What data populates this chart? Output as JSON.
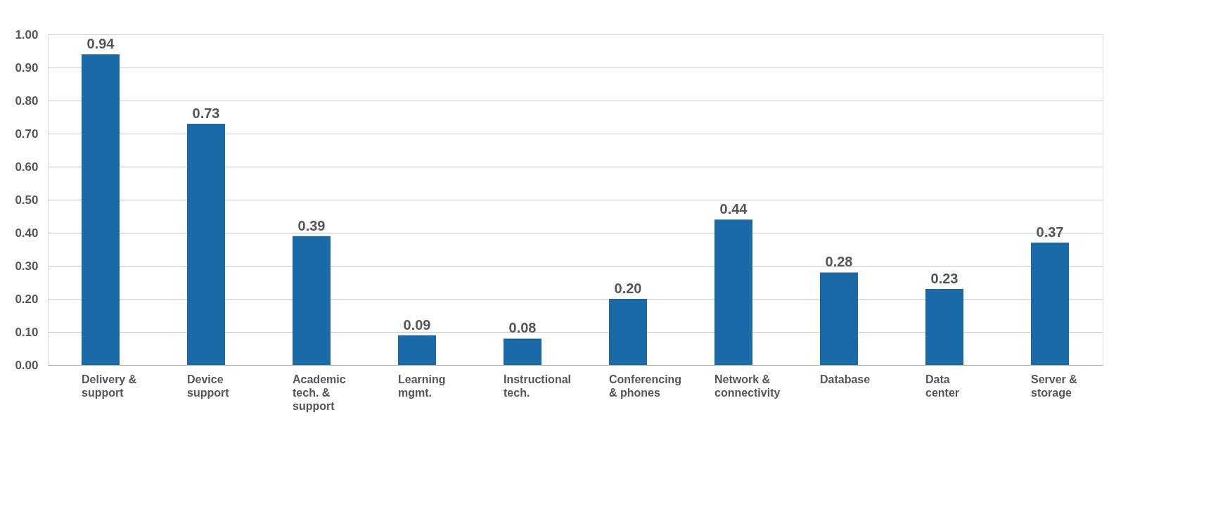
{
  "chart_data": {
    "type": "bar",
    "categories": [
      "Delivery & support",
      "Device support",
      "Academic tech. & support",
      "Learning mgmt.",
      "Instructional tech.",
      "Conferencing & phones",
      "Network & connectivity",
      "Database",
      "Data center",
      "Server & storage"
    ],
    "values": [
      0.94,
      0.73,
      0.39,
      0.09,
      0.08,
      0.2,
      0.44,
      0.28,
      0.23,
      0.37
    ],
    "value_labels": [
      "0.94",
      "0.73",
      "0.39",
      "0.09",
      "0.08",
      "0.20",
      "0.44",
      "0.28",
      "0.23",
      "0.37"
    ],
    "color": "#1a6aa8",
    "ylim": [
      0,
      1
    ],
    "yticks": [
      {
        "value": 0,
        "label": "0.00"
      },
      {
        "value": 0.1,
        "label": "0.10"
      },
      {
        "value": 0.2,
        "label": "0.20"
      },
      {
        "value": 0.3,
        "label": "0.30"
      },
      {
        "value": 0.4,
        "label": "0.40"
      },
      {
        "value": 0.5,
        "label": "0.50"
      },
      {
        "value": 0.6,
        "label": "0.60"
      },
      {
        "value": 0.7,
        "label": "0.70"
      },
      {
        "value": 0.8,
        "label": "0.80"
      },
      {
        "value": 0.9,
        "label": "0.90"
      },
      {
        "value": 1,
        "label": "1.00"
      }
    ],
    "grid": "y"
  }
}
